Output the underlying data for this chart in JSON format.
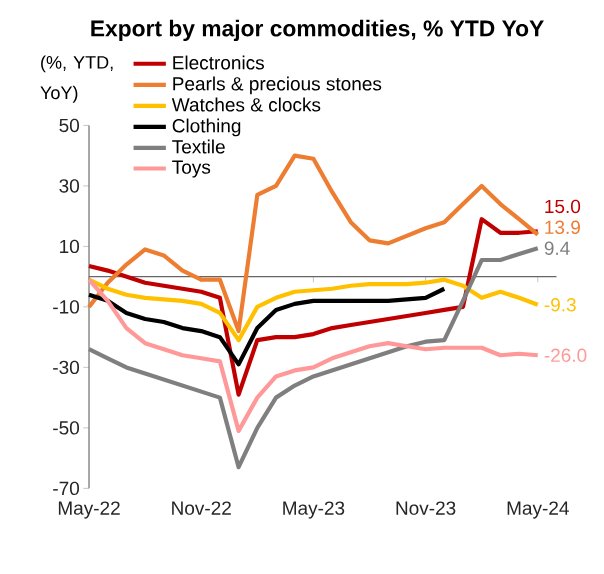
{
  "chart_data": {
    "type": "line",
    "title": "Export by major commodities, % YTD YoY",
    "ylabel": "(%, YTD, YoY)",
    "x": [
      "2022-05",
      "2022-06",
      "2022-07",
      "2022-08",
      "2022-09",
      "2022-10",
      "2022-11",
      "2022-12",
      "2023-01",
      "2023-02",
      "2023-03",
      "2023-04",
      "2023-05",
      "2023-06",
      "2023-07",
      "2023-08",
      "2023-09",
      "2023-10",
      "2023-11",
      "2023-12",
      "2024-01",
      "2024-02",
      "2024-03",
      "2024-04",
      "2024-05"
    ],
    "xlim": [
      "2022-05",
      "2024-06"
    ],
    "xticks": [
      {
        "value": "2022-05",
        "label": "May-22"
      },
      {
        "value": "2022-11",
        "label": "Nov-22"
      },
      {
        "value": "2023-05",
        "label": "May-23"
      },
      {
        "value": "2023-11",
        "label": "Nov-23"
      },
      {
        "value": "2024-05",
        "label": "May-24"
      }
    ],
    "ylim": [
      -70,
      50
    ],
    "yticks": [
      -70,
      -50,
      -30,
      -10,
      10,
      30,
      50
    ],
    "legend": "top left",
    "grid": false,
    "line_style": "solid",
    "marker": "none",
    "series": [
      {
        "name": "Electronics",
        "color": "#c00000",
        "values": [
          3.5,
          2,
          0,
          -2,
          -3,
          -4,
          -5,
          -7,
          -39,
          -21,
          -20,
          -20,
          -19,
          -17,
          -16,
          -15,
          -14,
          -13,
          -12,
          -11,
          -10,
          19,
          14.5,
          14.5,
          15.0
        ],
        "value_labels": [
          null,
          null,
          null,
          null,
          null,
          null,
          null,
          null,
          null,
          null,
          null,
          null,
          null,
          null,
          null,
          null,
          null,
          null,
          null,
          null,
          null,
          null,
          null,
          null,
          "15.0"
        ]
      },
      {
        "name": "Pearls & precious stones",
        "color": "#ed7d31",
        "values": [
          -10,
          -2,
          4,
          9,
          7,
          2,
          -1,
          -1,
          -18,
          27,
          30,
          40,
          39,
          28,
          18,
          12,
          11,
          13.5,
          16,
          18,
          24,
          30,
          24,
          19,
          13.9
        ],
        "value_labels": [
          null,
          null,
          null,
          null,
          null,
          null,
          null,
          null,
          null,
          null,
          null,
          null,
          null,
          null,
          null,
          null,
          null,
          null,
          null,
          null,
          null,
          null,
          null,
          null,
          "13.9"
        ]
      },
      {
        "name": "Watches & clocks",
        "color": "#ffc000",
        "values": [
          -1,
          -4,
          -6,
          -7,
          -7.5,
          -8,
          -9,
          -12,
          -21,
          -10,
          -7,
          -5,
          -4.5,
          -4,
          -3,
          -2.5,
          -2.5,
          -2.5,
          -2,
          -1,
          -3,
          -7,
          -5,
          -7,
          -9.3
        ],
        "value_labels": [
          null,
          null,
          null,
          null,
          null,
          null,
          null,
          null,
          null,
          null,
          null,
          null,
          null,
          null,
          null,
          null,
          null,
          null,
          null,
          null,
          null,
          null,
          null,
          null,
          "-9.3"
        ]
      },
      {
        "name": "Clothing",
        "color": "#000000",
        "values": [
          -6,
          -8,
          -12,
          -14,
          -15,
          -17,
          -18,
          -20,
          -29,
          -17,
          -11,
          -9,
          -8,
          -8,
          -8,
          -8,
          -8,
          -7.5,
          -7,
          -4,
          null,
          null,
          null,
          null,
          null
        ]
      },
      {
        "name": "Textile",
        "color": "#7f7f7f",
        "values": [
          -24,
          -27,
          -30,
          -32,
          -34,
          -36,
          -38,
          -40,
          -63,
          -50,
          -40,
          -36,
          -33,
          -31,
          -29,
          -27,
          -25,
          -23,
          -21.5,
          -21,
          -8,
          5.5,
          5.5,
          7.5,
          9.4
        ],
        "value_labels": [
          null,
          null,
          null,
          null,
          null,
          null,
          null,
          null,
          null,
          null,
          null,
          null,
          null,
          null,
          null,
          null,
          null,
          null,
          null,
          null,
          null,
          null,
          null,
          null,
          "9.4"
        ]
      },
      {
        "name": "Toys",
        "color": "#ff9999",
        "values": [
          -1,
          -8,
          -17,
          -22,
          -24,
          -26,
          -27,
          -28,
          -51,
          -40,
          -33,
          -31,
          -30,
          -27,
          -25,
          -23,
          -22,
          -23,
          -24,
          -23.5,
          -23.5,
          -23.5,
          -26,
          -25.5,
          -26.0
        ],
        "value_labels": [
          null,
          null,
          null,
          null,
          null,
          null,
          null,
          null,
          null,
          null,
          null,
          null,
          null,
          null,
          null,
          null,
          null,
          null,
          null,
          null,
          null,
          null,
          null,
          null,
          "-26.0"
        ]
      }
    ]
  }
}
